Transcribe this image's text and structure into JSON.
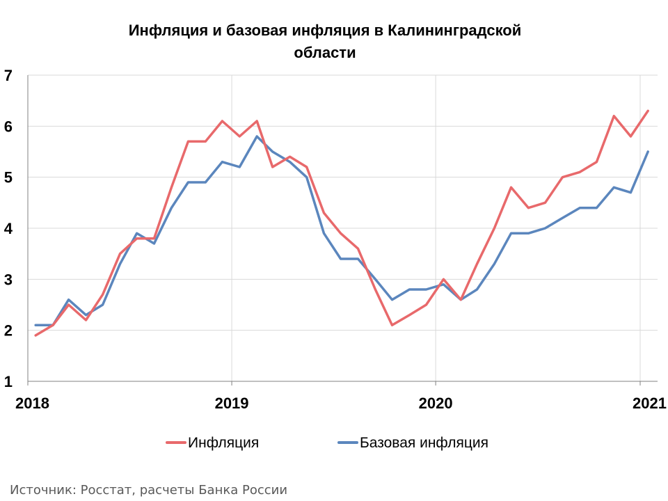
{
  "chart_data": {
    "type": "line",
    "title": "Инфляция и базовая инфляция в Калининградской области",
    "title_lines": [
      "Инфляция и базовая инфляция в Калининградской",
      "области"
    ],
    "xlabel": "",
    "ylabel": "",
    "ylim": [
      1,
      7
    ],
    "yticks": [
      "1",
      "2",
      "3",
      "4",
      "5",
      "6",
      "7"
    ],
    "xticks": [
      "2018",
      "2019",
      "2020",
      "2021"
    ],
    "x": [
      "2018-01",
      "2018-02",
      "2018-03",
      "2018-04",
      "2018-05",
      "2018-06",
      "2018-07",
      "2018-08",
      "2018-09",
      "2018-10",
      "2018-11",
      "2018-12",
      "2019-01",
      "2019-02",
      "2019-03",
      "2019-04",
      "2019-05",
      "2019-06",
      "2019-07",
      "2019-08",
      "2019-09",
      "2019-10",
      "2019-11",
      "2019-12",
      "2020-01",
      "2020-02",
      "2020-03",
      "2020-04",
      "2020-05",
      "2020-06",
      "2020-07",
      "2020-08",
      "2020-09",
      "2020-10",
      "2020-11",
      "2020-12",
      "2021-01"
    ],
    "series": [
      {
        "name": "Инфляция",
        "color": "#e8696b",
        "values": [
          1.9,
          2.1,
          2.5,
          2.2,
          2.7,
          3.5,
          3.8,
          3.8,
          4.8,
          5.7,
          5.7,
          6.1,
          5.8,
          6.1,
          5.2,
          5.4,
          5.2,
          4.3,
          3.9,
          3.6,
          2.8,
          2.1,
          2.3,
          2.5,
          3.0,
          2.6,
          3.3,
          4.0,
          4.8,
          4.4,
          4.5,
          5.0,
          5.1,
          5.3,
          6.2,
          5.8,
          6.3
        ]
      },
      {
        "name": "Базовая инфляция",
        "color": "#5b86bd",
        "values": [
          2.1,
          2.1,
          2.6,
          2.3,
          2.5,
          3.3,
          3.9,
          3.7,
          4.4,
          4.9,
          4.9,
          5.3,
          5.2,
          5.8,
          5.5,
          5.3,
          5.0,
          3.9,
          3.4,
          3.4,
          3.0,
          2.6,
          2.8,
          2.8,
          2.9,
          2.6,
          2.8,
          3.3,
          3.9,
          3.9,
          4.0,
          4.2,
          4.4,
          4.4,
          4.8,
          4.7,
          5.5
        ]
      }
    ],
    "grid": true,
    "legend_position": "bottom"
  },
  "source": "Источник: Росстат, расчеты Банка России"
}
